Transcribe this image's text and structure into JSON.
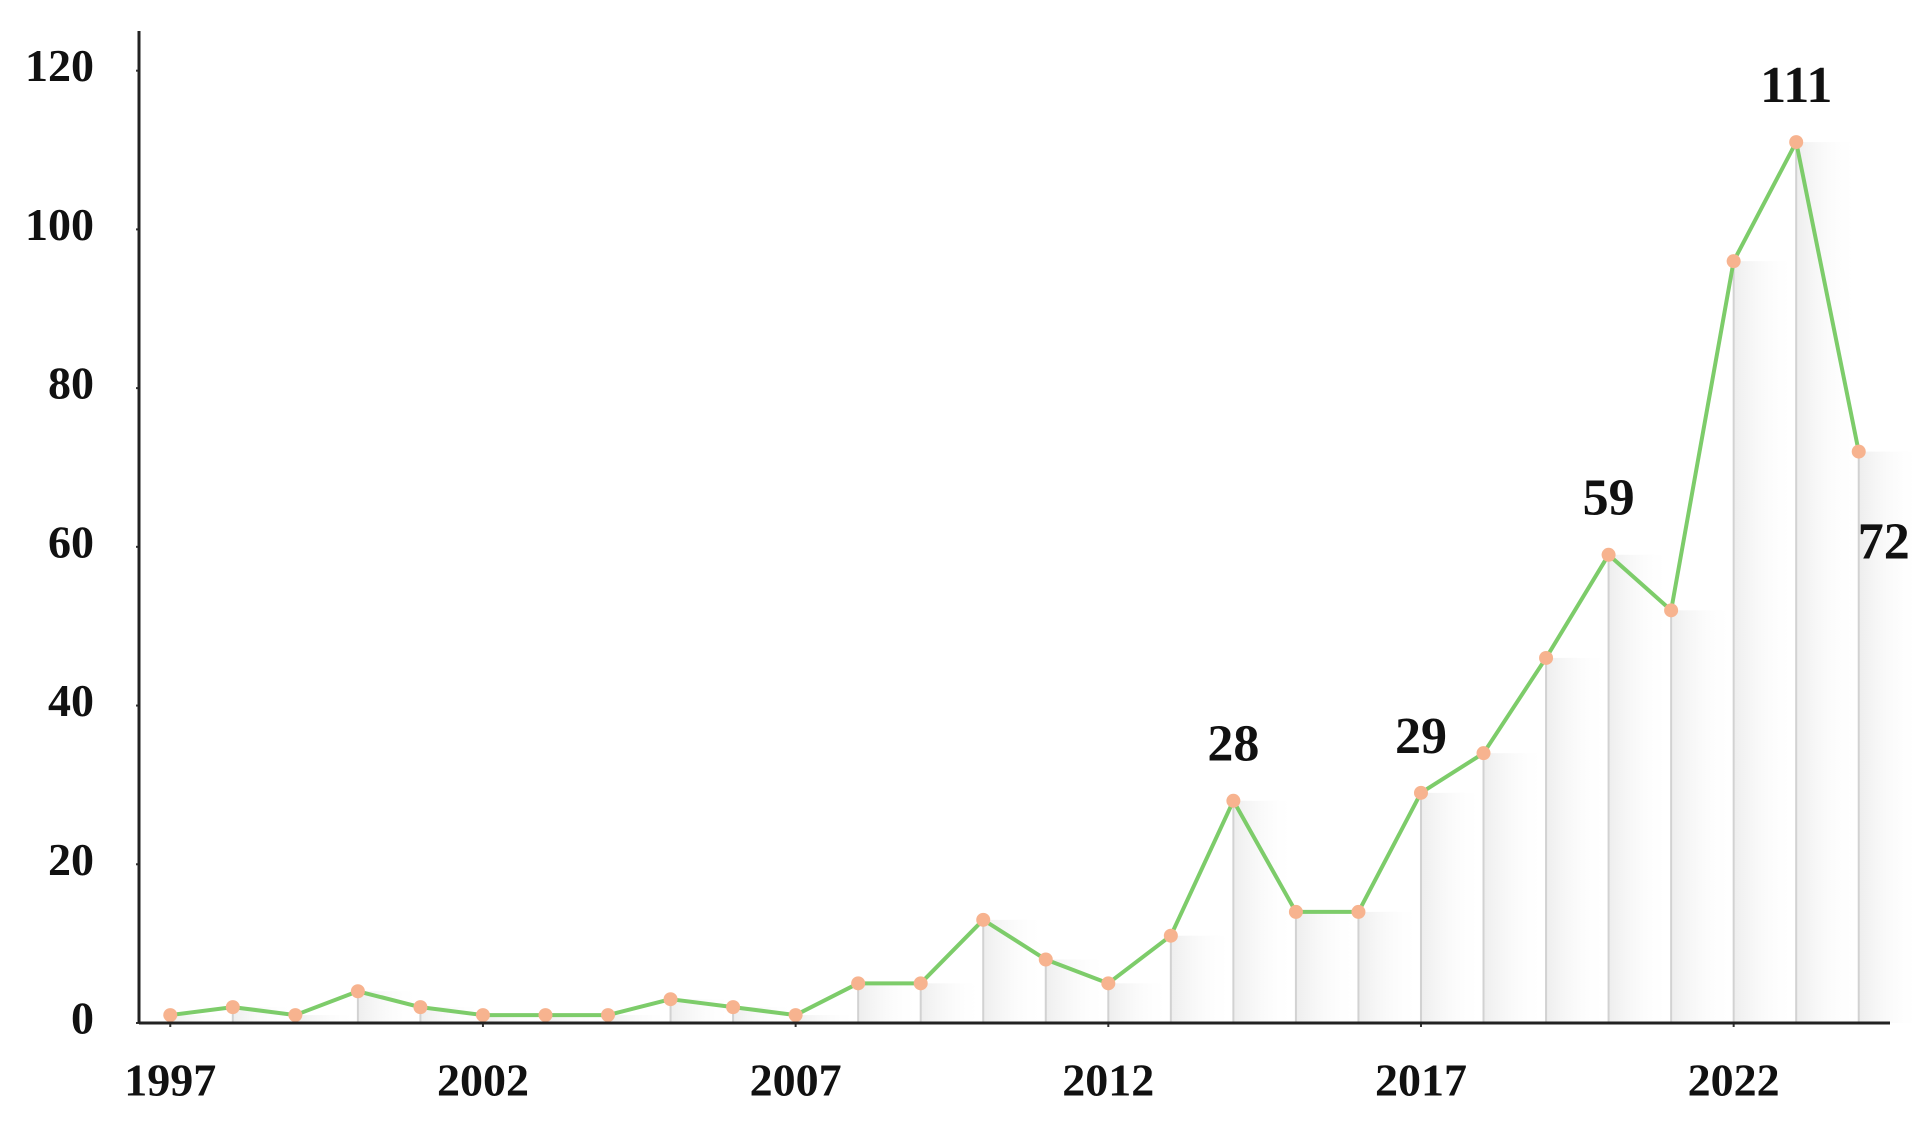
{
  "chart_data": {
    "type": "line",
    "x": [
      1997,
      1998,
      1999,
      2000,
      2001,
      2002,
      2003,
      2004,
      2005,
      2006,
      2007,
      2008,
      2009,
      2010,
      2011,
      2012,
      2013,
      2014,
      2015,
      2016,
      2017,
      2018,
      2019,
      2020,
      2021,
      2022,
      2023,
      2024
    ],
    "values": [
      1,
      2,
      1,
      4,
      2,
      1,
      1,
      1,
      3,
      2,
      1,
      5,
      5,
      13,
      8,
      5,
      11,
      28,
      14,
      14,
      29,
      34,
      46,
      59,
      52,
      96,
      111,
      72
    ],
    "value_labels": [
      null,
      null,
      null,
      null,
      null,
      null,
      null,
      null,
      null,
      null,
      null,
      null,
      null,
      null,
      null,
      null,
      null,
      "28",
      null,
      null,
      "29",
      null,
      null,
      "59",
      null,
      null,
      "111",
      "72"
    ],
    "color": "#7dcc6a",
    "marker_color": "#f7b38f",
    "xlim": [
      1996.5,
      2024.5
    ],
    "xticks": [
      1997,
      2002,
      2007,
      2012,
      2017,
      2022
    ],
    "ylim": [
      0,
      125
    ],
    "yticks": [
      0,
      20,
      40,
      60,
      80,
      100,
      120
    ]
  }
}
